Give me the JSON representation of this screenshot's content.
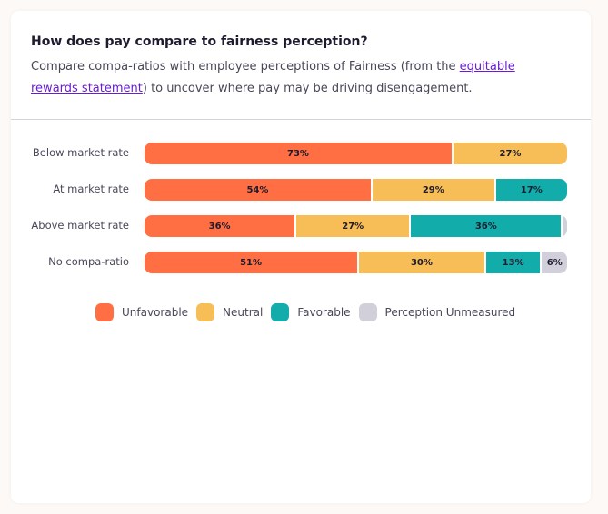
{
  "header": {
    "title": "How does pay compare to fairness perception?",
    "desc_before": "Compare compa-ratios with employee perceptions of Fairness (from the ",
    "link": "equitable rewards statement",
    "desc_after": ") to uncover where pay may be driving disengagement."
  },
  "chart_data": {
    "type": "bar",
    "stacked": true,
    "orientation": "horizontal",
    "categories": [
      "Below market rate",
      "At market rate",
      "Above market rate",
      "No compa-ratio"
    ],
    "series": [
      {
        "name": "Unfavorable",
        "color": "#ff6f43",
        "values": [
          73,
          54,
          36,
          51
        ]
      },
      {
        "name": "Neutral",
        "color": "#f7bd57",
        "values": [
          27,
          29,
          27,
          30
        ]
      },
      {
        "name": "Favorable",
        "color": "#12adaa",
        "values": [
          0,
          17,
          36,
          13
        ]
      },
      {
        "name": "Perception Unmeasured",
        "color": "#d1d0da",
        "values": [
          0,
          0,
          1,
          6
        ]
      }
    ],
    "labels": [
      [
        "73%",
        "27%",
        "",
        ""
      ],
      [
        "54%",
        "29%",
        "17%",
        ""
      ],
      [
        "36%",
        "27%",
        "36%",
        ""
      ],
      [
        "51%",
        "30%",
        "13%",
        "6%"
      ]
    ],
    "xlim": [
      0,
      100
    ],
    "legend": "bottom"
  }
}
